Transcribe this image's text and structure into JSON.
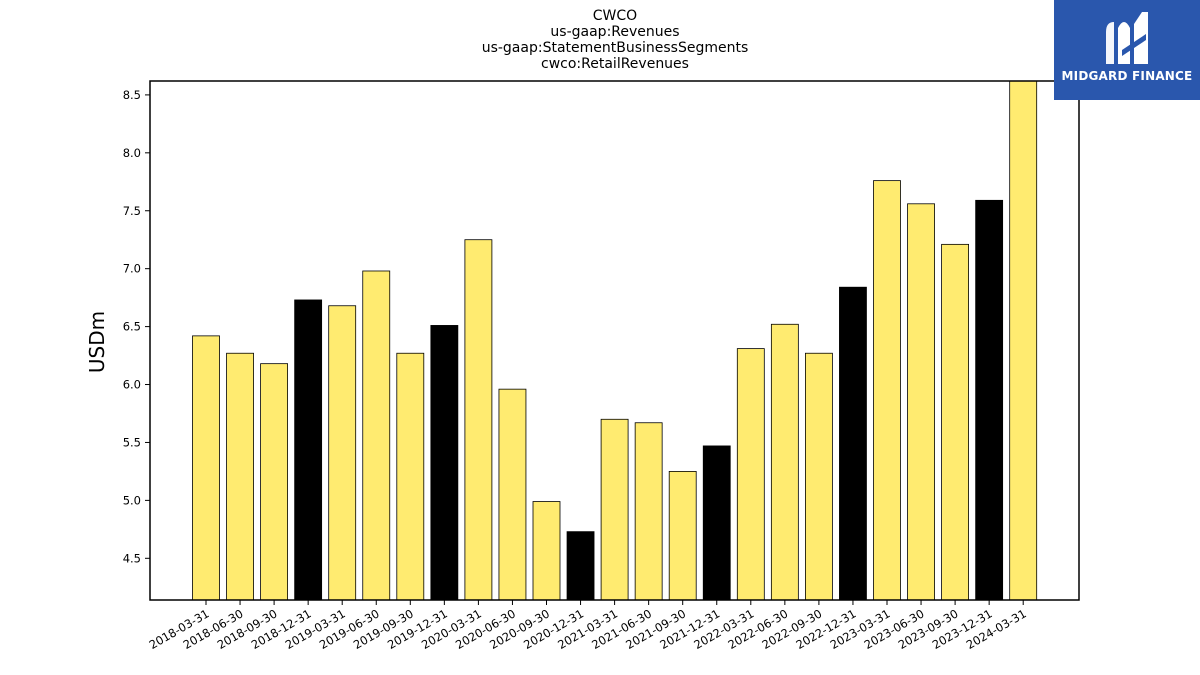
{
  "brand": {
    "name": "MIDGARD FINANCE",
    "logo_icon": "midgard-m-icon",
    "background_color": "#2a57ad"
  },
  "chart_data": {
    "type": "bar",
    "title_lines": [
      "CWCO",
      "us-gaap:Revenues",
      "us-gaap:StatementBusinessSegments",
      "cwco:RetailRevenues"
    ],
    "xlabel": "",
    "ylabel": "USDm",
    "ylim": [
      4.14,
      8.62
    ],
    "yticks": [
      4.5,
      5.0,
      5.5,
      6.0,
      6.5,
      7.0,
      7.5,
      8.0,
      8.5
    ],
    "grid": false,
    "legend": "none",
    "colors": {
      "quarter": "#ffeb70",
      "year_end": "#000000",
      "edge": "#000000"
    },
    "categories": [
      "2018-03-31",
      "2018-06-30",
      "2018-09-30",
      "2018-12-31",
      "2019-03-31",
      "2019-06-30",
      "2019-09-30",
      "2019-12-31",
      "2020-03-31",
      "2020-06-30",
      "2020-09-30",
      "2020-12-31",
      "2021-03-31",
      "2021-06-30",
      "2021-09-30",
      "2021-12-31",
      "2022-03-31",
      "2022-06-30",
      "2022-09-30",
      "2022-12-31",
      "2023-03-31",
      "2023-06-30",
      "2023-09-30",
      "2023-12-31",
      "2024-03-31"
    ],
    "values": [
      6.42,
      6.27,
      6.18,
      6.73,
      6.68,
      6.98,
      6.27,
      6.51,
      7.25,
      5.96,
      4.99,
      4.73,
      5.7,
      5.67,
      5.25,
      5.47,
      6.31,
      6.52,
      6.27,
      6.84,
      7.76,
      7.56,
      7.21,
      7.59,
      8.62
    ],
    "highlight": [
      false,
      false,
      false,
      true,
      false,
      false,
      false,
      true,
      false,
      false,
      false,
      true,
      false,
      false,
      false,
      true,
      false,
      false,
      false,
      true,
      false,
      false,
      false,
      true,
      false
    ]
  }
}
